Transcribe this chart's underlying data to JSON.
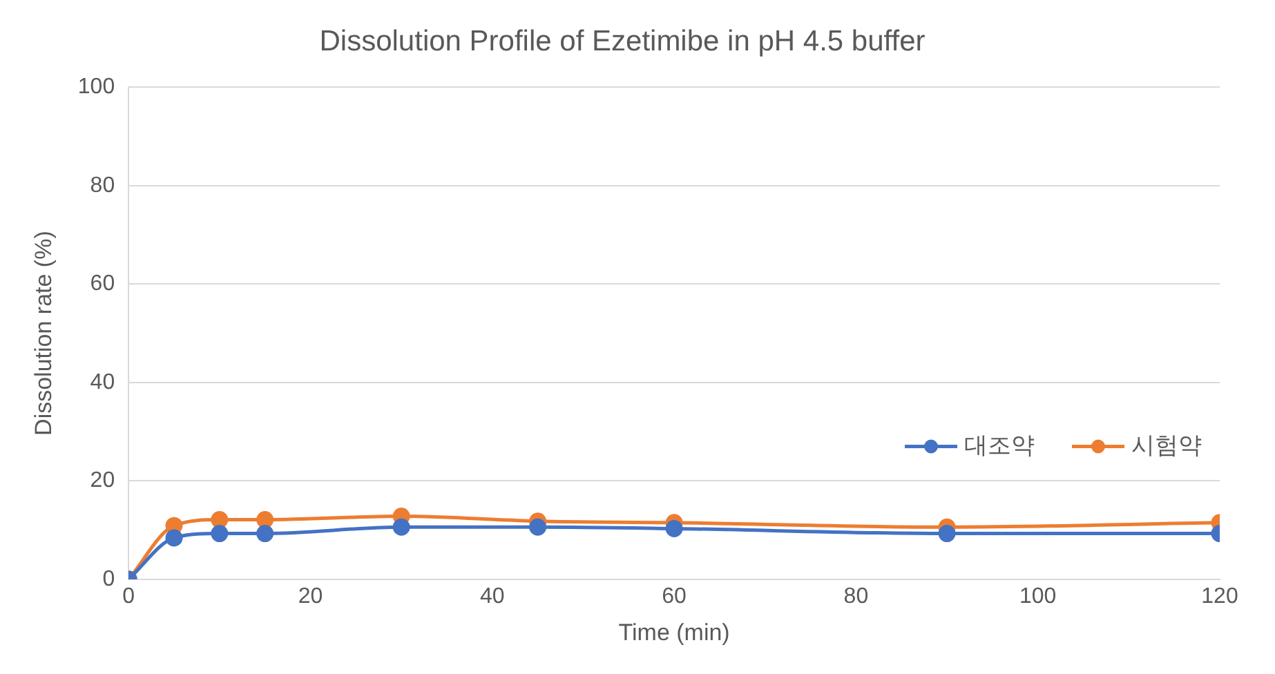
{
  "chart_data": {
    "type": "line",
    "title": "Dissolution Profile of Ezetimibe in pH 4.5 buffer",
    "xlabel": "Time (min)",
    "ylabel": "Dissolution rate (%)",
    "x": [
      0,
      5,
      10,
      15,
      30,
      45,
      60,
      90,
      120
    ],
    "series": [
      {
        "name": "대조약",
        "color": "#4472c4",
        "values": [
          0,
          8.4,
          9.3,
          9.3,
          10.6,
          10.6,
          10.3,
          9.3,
          9.3
        ]
      },
      {
        "name": "시험약",
        "color": "#ed7d31",
        "values": [
          0,
          10.9,
          12.1,
          12.1,
          12.8,
          11.8,
          11.5,
          10.6,
          11.5
        ]
      }
    ],
    "xlim": [
      0,
      120
    ],
    "xticks": [
      0,
      20,
      40,
      60,
      80,
      100,
      120
    ],
    "ylim": [
      0,
      100
    ],
    "yticks": [
      0,
      20,
      40,
      60,
      80,
      100
    ],
    "grid": "y",
    "legend": "right",
    "marker": "circle",
    "line_style": "solid"
  }
}
